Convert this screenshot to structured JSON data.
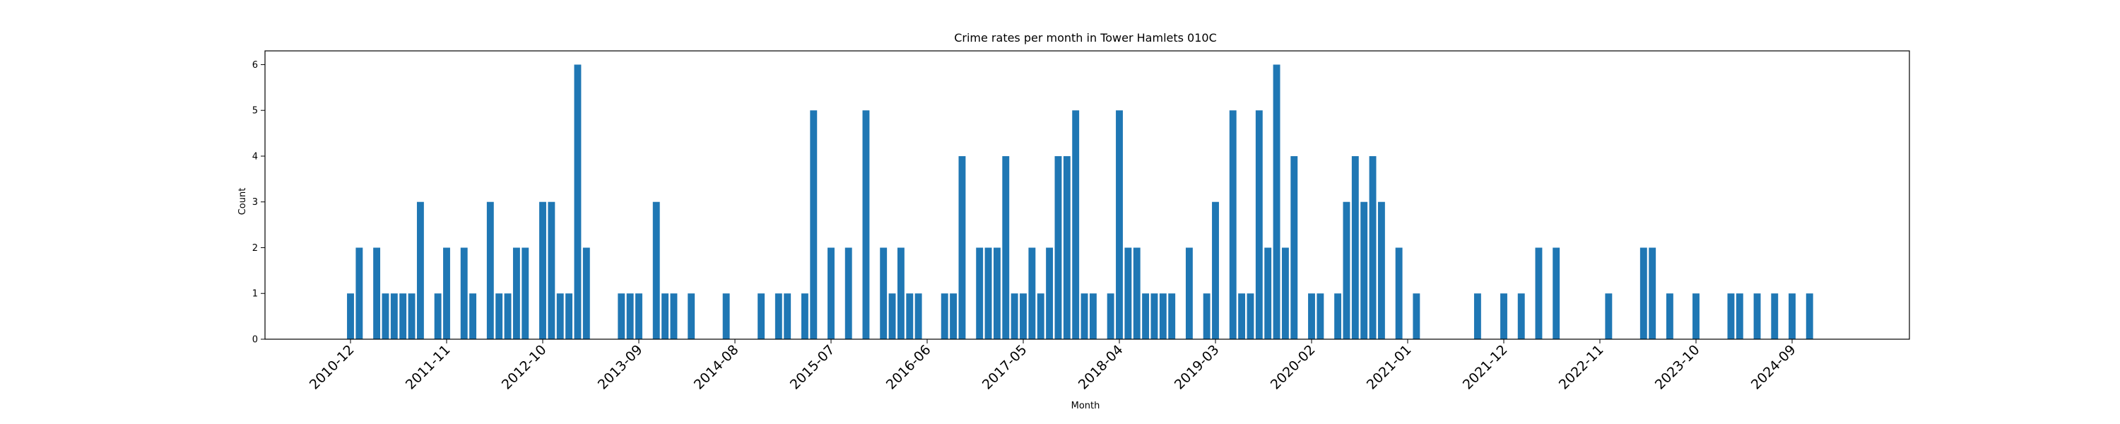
{
  "chart_data": {
    "type": "bar",
    "title": "Crime rates per month in Tower Hamlets 010C",
    "xlabel": "Month",
    "ylabel": "Count",
    "ylim": [
      0,
      6.3
    ],
    "yticks": [
      0,
      1,
      2,
      3,
      4,
      5,
      6
    ],
    "xticks": [
      "2010-12",
      "2011-11",
      "2012-10",
      "2013-09",
      "2014-08",
      "2015-07",
      "2016-06",
      "2017-05",
      "2018-04",
      "2019-03",
      "2020-02",
      "2021-01",
      "2021-12",
      "2022-11",
      "2023-10",
      "2024-09"
    ],
    "bar_color": "#1f77b4",
    "grid": false,
    "x": [
      "2010-12",
      "2011-01",
      "2011-03",
      "2011-04",
      "2011-05",
      "2011-06",
      "2011-07",
      "2011-08",
      "2011-10",
      "2011-11",
      "2012-01",
      "2012-02",
      "2012-04",
      "2012-05",
      "2012-06",
      "2012-07",
      "2012-08",
      "2012-10",
      "2012-11",
      "2012-12",
      "2013-01",
      "2013-02",
      "2013-03",
      "2013-07",
      "2013-08",
      "2013-09",
      "2013-11",
      "2013-12",
      "2014-01",
      "2014-03",
      "2014-07",
      "2014-11",
      "2015-01",
      "2015-02",
      "2015-04",
      "2015-05",
      "2015-07",
      "2015-09",
      "2015-11",
      "2016-01",
      "2016-02",
      "2016-03",
      "2016-04",
      "2016-05",
      "2016-08",
      "2016-09",
      "2016-10",
      "2016-12",
      "2017-01",
      "2017-02",
      "2017-03",
      "2017-04",
      "2017-05",
      "2017-06",
      "2017-07",
      "2017-08",
      "2017-09",
      "2017-10",
      "2017-11",
      "2017-12",
      "2018-01",
      "2018-03",
      "2018-04",
      "2018-05",
      "2018-06",
      "2018-07",
      "2018-08",
      "2018-09",
      "2018-10",
      "2018-12",
      "2019-02",
      "2019-03",
      "2019-05",
      "2019-06",
      "2019-07",
      "2019-08",
      "2019-09",
      "2019-10",
      "2019-11",
      "2019-12",
      "2020-02",
      "2020-03",
      "2020-05",
      "2020-06",
      "2020-07",
      "2020-08",
      "2020-09",
      "2020-10",
      "2020-12",
      "2021-02",
      "2021-09",
      "2021-12",
      "2022-02",
      "2022-04",
      "2022-06",
      "2022-12",
      "2023-04",
      "2023-05",
      "2023-07",
      "2023-10",
      "2024-02",
      "2024-03",
      "2024-05",
      "2024-07",
      "2024-09",
      "2024-11"
    ],
    "values": [
      1,
      2,
      2,
      1,
      1,
      1,
      1,
      3,
      1,
      2,
      2,
      1,
      3,
      1,
      1,
      2,
      2,
      3,
      3,
      1,
      1,
      6,
      2,
      1,
      1,
      1,
      3,
      1,
      1,
      1,
      1,
      1,
      1,
      1,
      1,
      5,
      2,
      2,
      5,
      2,
      1,
      2,
      1,
      1,
      1,
      1,
      4,
      2,
      2,
      2,
      4,
      1,
      1,
      2,
      1,
      2,
      4,
      4,
      5,
      1,
      1,
      1,
      5,
      2,
      2,
      1,
      1,
      1,
      1,
      2,
      1,
      3,
      5,
      1,
      1,
      5,
      2,
      6,
      2,
      4,
      1,
      1,
      1,
      3,
      4,
      3,
      4,
      3,
      2,
      1,
      1,
      1,
      1,
      2,
      2,
      1,
      2,
      2,
      1,
      1,
      1,
      1,
      1,
      1,
      1,
      1
    ]
  }
}
